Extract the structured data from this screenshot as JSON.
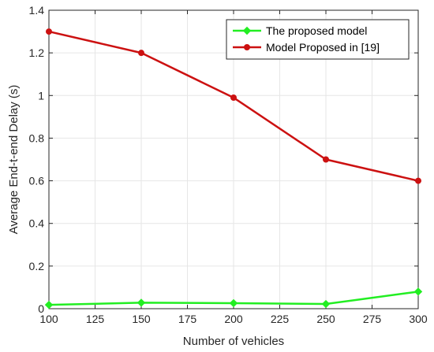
{
  "chart_data": {
    "type": "line",
    "title": "",
    "xlabel": "Number of vehicles",
    "ylabel": "Average End-t-end Delay  (s)",
    "x": [
      100,
      150,
      200,
      250,
      300
    ],
    "xlim": [
      100,
      300
    ],
    "ylim": [
      0,
      1.4
    ],
    "xticks": [
      100,
      125,
      150,
      175,
      200,
      225,
      250,
      275,
      300
    ],
    "yticks": [
      0,
      0.2,
      0.4,
      0.6,
      0.8,
      1,
      1.2,
      1.4
    ],
    "grid": true,
    "legend_position": "top-right",
    "series": [
      {
        "name": "The proposed model",
        "values": [
          0.018,
          0.028,
          0.026,
          0.022,
          0.08
        ],
        "color": "#22ee22",
        "marker": "diamond"
      },
      {
        "name": "Model Proposed in [19]",
        "values": [
          1.3,
          1.2,
          0.99,
          0.7,
          0.6
        ],
        "color": "#cc1111",
        "marker": "circle"
      }
    ]
  }
}
